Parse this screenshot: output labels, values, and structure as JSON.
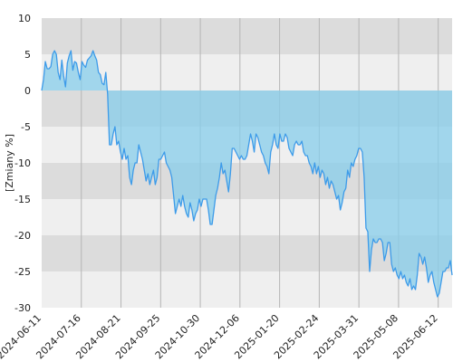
{
  "chart_data": {
    "type": "area",
    "ylabel": "[Zmiany %]",
    "xlabel": "",
    "title": "",
    "ylim": [
      -30,
      10
    ],
    "y_ticks": [
      10,
      5,
      0,
      -5,
      -10,
      -15,
      -20,
      -25,
      -30
    ],
    "x_tick_labels": [
      "2024-06-11",
      "2024-07-16",
      "2024-08-21",
      "2024-09-25",
      "2024-10-30",
      "2024-12-06",
      "2025-01-20",
      "2025-02-24",
      "2025-03-31",
      "2025-05-08",
      "2025-06-12"
    ],
    "grid": true,
    "legend": "none",
    "colors": {
      "line": "#3d9be9",
      "fill_positive": "#add8e6",
      "fill_negative": "#87ceeb",
      "band_dark": "#dcdcdc",
      "band_light": "#efefef",
      "vgrid": "#b5b5b5"
    },
    "series": [
      {
        "values": [
          0.0,
          1.5,
          4.0,
          3.0,
          3.0,
          3.3,
          5.0,
          5.5,
          5.0,
          2.5,
          1.5,
          4.2,
          2.0,
          0.5,
          3.8,
          4.8,
          5.5,
          2.8,
          4.0,
          3.8,
          2.5,
          1.5,
          4.0,
          3.5,
          3.2,
          4.2,
          4.5,
          4.8,
          5.5,
          4.8,
          4.2,
          2.5,
          2.2,
          1.0,
          0.8,
          2.5,
          -0.5,
          -7.5,
          -7.5,
          -6.0,
          -5.0,
          -7.5,
          -7.0,
          -8.5,
          -9.5,
          -8.0,
          -9.5,
          -9.0,
          -12.0,
          -13.0,
          -11.0,
          -10.0,
          -10.0,
          -7.5,
          -8.5,
          -9.5,
          -11.0,
          -12.5,
          -11.5,
          -13.0,
          -12.0,
          -11.0,
          -13.0,
          -12.0,
          -9.5,
          -9.5,
          -9.0,
          -8.5,
          -10.0,
          -10.5,
          -11.0,
          -12.0,
          -14.5,
          -17.0,
          -16.0,
          -15.0,
          -16.0,
          -14.5,
          -16.0,
          -17.0,
          -17.5,
          -15.5,
          -16.5,
          -18.0,
          -17.0,
          -16.5,
          -15.0,
          -16.0,
          -15.0,
          -15.0,
          -15.0,
          -16.5,
          -18.5,
          -18.5,
          -16.5,
          -14.5,
          -13.5,
          -12.0,
          -10.0,
          -11.5,
          -11.0,
          -12.5,
          -14.0,
          -11.5,
          -8.0,
          -8.0,
          -8.5,
          -9.0,
          -9.5,
          -9.0,
          -9.5,
          -9.5,
          -9.0,
          -7.5,
          -6.0,
          -7.0,
          -8.5,
          -6.0,
          -6.5,
          -7.5,
          -8.5,
          -9.0,
          -10.0,
          -10.5,
          -11.5,
          -8.5,
          -7.5,
          -6.0,
          -7.5,
          -8.0,
          -6.0,
          -7.0,
          -7.0,
          -6.0,
          -6.5,
          -8.0,
          -8.5,
          -9.0,
          -7.5,
          -7.0,
          -7.5,
          -7.5,
          -7.0,
          -8.5,
          -9.0,
          -9.0,
          -10.0,
          -10.5,
          -11.5,
          -10.0,
          -11.5,
          -10.5,
          -12.0,
          -11.0,
          -11.5,
          -13.0,
          -12.0,
          -13.5,
          -12.5,
          -13.0,
          -14.0,
          -15.0,
          -14.5,
          -16.5,
          -15.5,
          -14.0,
          -13.5,
          -11.0,
          -12.0,
          -10.0,
          -10.5,
          -9.5,
          -9.0,
          -8.0,
          -8.0,
          -8.5,
          -12.0,
          -19.0,
          -19.5,
          -25.0,
          -22.0,
          -20.5,
          -21.0,
          -21.0,
          -20.5,
          -20.5,
          -21.0,
          -23.5,
          -22.5,
          -21.0,
          -21.0,
          -24.0,
          -25.0,
          -24.5,
          -25.5,
          -26.0,
          -25.0,
          -26.0,
          -25.5,
          -26.5,
          -27.0,
          -26.0,
          -27.5,
          -27.0,
          -27.5,
          -25.5,
          -22.5,
          -23.0,
          -24.0,
          -23.0,
          -24.5,
          -26.5,
          -25.5,
          -25.0,
          -26.5,
          -27.5,
          -28.5,
          -28.0,
          -26.5,
          -25.0,
          -25.0,
          -24.5,
          -24.5,
          -23.5,
          -25.5
        ]
      }
    ]
  }
}
